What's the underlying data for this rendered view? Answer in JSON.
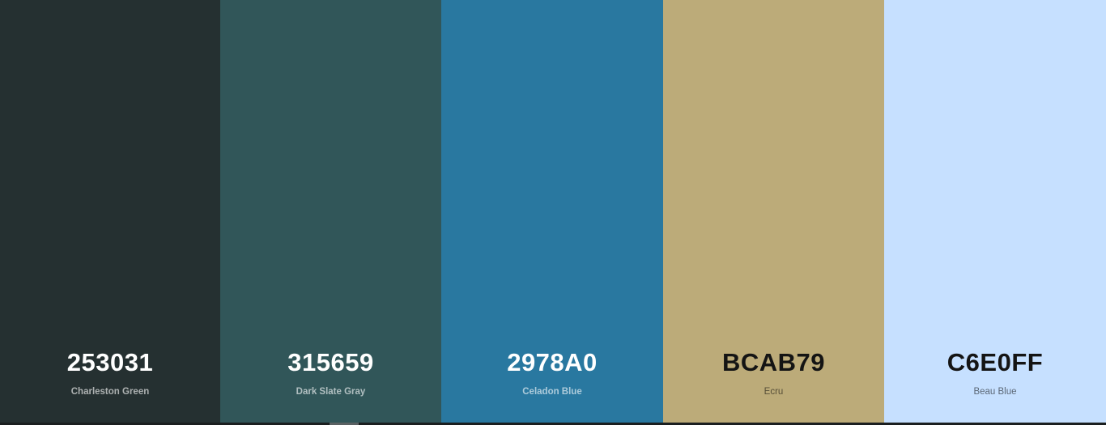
{
  "palette": {
    "swatches": [
      {
        "hex": "253031",
        "name": "Charleston Green",
        "color": "#253031",
        "text_tone": "dark"
      },
      {
        "hex": "315659",
        "name": "Dark Slate Gray",
        "color": "#315659",
        "text_tone": "dark"
      },
      {
        "hex": "2978A0",
        "name": "Celadon Blue",
        "color": "#2978A0",
        "text_tone": "dark"
      },
      {
        "hex": "BCAB79",
        "name": "Ecru",
        "color": "#BCAB79",
        "text_tone": "light"
      },
      {
        "hex": "C6E0FF",
        "name": "Beau Blue",
        "color": "#C6E0FF",
        "text_tone": "light"
      }
    ]
  }
}
